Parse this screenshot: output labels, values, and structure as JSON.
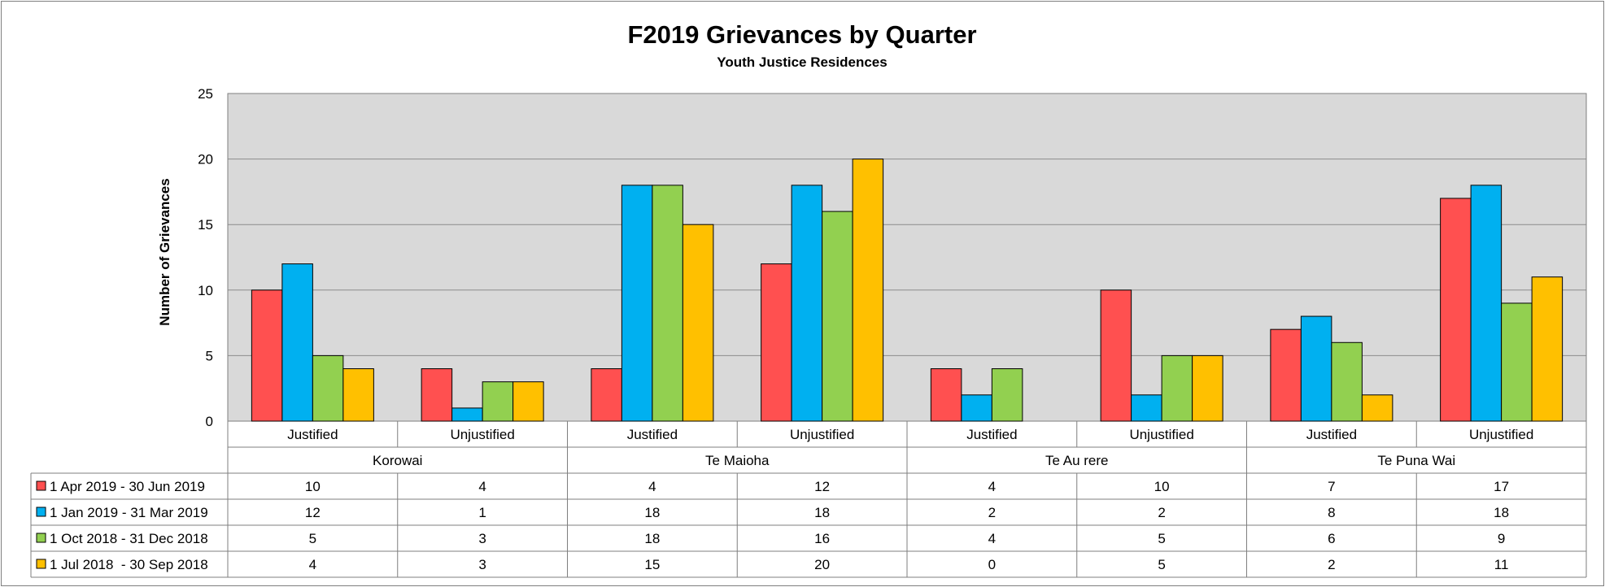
{
  "chart_data": {
    "type": "bar",
    "title": "F2019 Grievances by Quarter",
    "subtitle": "Youth Justice Residences",
    "ylabel": "Number of Grievances",
    "xlabel": "",
    "ylim": [
      0,
      25
    ],
    "yticks": [
      0,
      5,
      10,
      15,
      20,
      25
    ],
    "grid": true,
    "legend": "data-table-left",
    "groups": [
      {
        "name": "Korowai",
        "categories": [
          "Justified",
          "Unjustified"
        ]
      },
      {
        "name": "Te Maioha",
        "categories": [
          "Justified",
          "Unjustified"
        ]
      },
      {
        "name": "Te Au rere",
        "categories": [
          "Justified",
          "Unjustified"
        ]
      },
      {
        "name": "Te Puna Wai",
        "categories": [
          "Justified",
          "Unjustified"
        ]
      }
    ],
    "categories": [
      "Justified",
      "Unjustified",
      "Justified",
      "Unjustified",
      "Justified",
      "Unjustified",
      "Justified",
      "Unjustified"
    ],
    "series": [
      {
        "name": "1 Apr 2019 - 30 Jun 2019",
        "color": "#ff5050",
        "values": [
          10,
          4,
          4,
          12,
          4,
          10,
          7,
          17
        ]
      },
      {
        "name": "1 Jan 2019 - 31 Mar 2019",
        "color": "#00b0f0",
        "values": [
          12,
          1,
          18,
          18,
          2,
          2,
          8,
          18
        ]
      },
      {
        "name": "1 Oct 2018 - 31 Dec 2018",
        "color": "#92d050",
        "values": [
          5,
          3,
          18,
          16,
          4,
          5,
          6,
          9
        ]
      },
      {
        "name": "1 Jul 2018  - 30 Sep 2018",
        "color": "#ffc000",
        "values": [
          4,
          3,
          15,
          20,
          0,
          5,
          2,
          11
        ]
      }
    ],
    "colors": {
      "plot_background": "#d9d9d9",
      "gridline": "#8c8c8c",
      "border": "#7f7f7f"
    }
  }
}
